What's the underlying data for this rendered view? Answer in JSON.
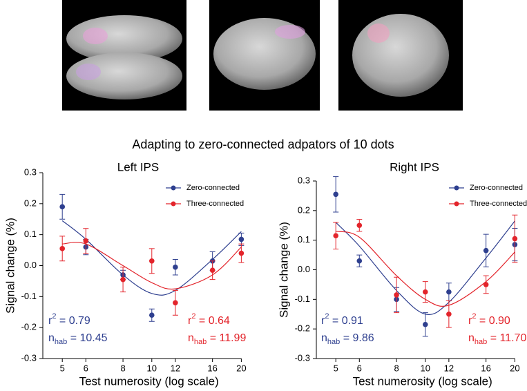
{
  "figure_title": "Adapting to zero-connected adpators of 10 dots",
  "chart_data": [
    {
      "type": "scatter",
      "title": "Left IPS",
      "x_label": "Test numerosity (log scale)",
      "y_label": "Signal change (%)",
      "xscale": "log",
      "xlim": [
        4.3,
        20.5
      ],
      "xticks": [
        5,
        6,
        8,
        10,
        12,
        16,
        20
      ],
      "ylim": [
        -0.3,
        0.3
      ],
      "yticks": [
        -0.3,
        -0.2,
        -0.1,
        {
          "value": 0,
          "label": "0.0"
        },
        0.1,
        0.2,
        0.3
      ],
      "grid": false,
      "legend": "upper right",
      "x": [
        5,
        6,
        8,
        10,
        12,
        16,
        20
      ],
      "series": [
        {
          "name": "Zero-connected",
          "color": "#2e3f8f",
          "values": [
            0.19,
            0.06,
            -0.03,
            -0.16,
            -0.005,
            0.015,
            0.085
          ],
          "errors": [
            0.04,
            0.025,
            0.015,
            0.02,
            0.025,
            0.03,
            0.02
          ],
          "fit": [
            0.145,
            0.085,
            -0.03,
            -0.09,
            -0.08,
            0.02,
            0.11
          ],
          "fit_stats": [
            {
              "base": "r",
              "sup": "2",
              "text": " = 0.79"
            },
            {
              "base": "n",
              "sub": "hab",
              "text": " = 10.45"
            }
          ]
        },
        {
          "name": "Three-connected",
          "color": "#e3242b",
          "values": [
            0.055,
            0.08,
            -0.045,
            0.015,
            -0.12,
            -0.015,
            0.04
          ],
          "errors": [
            0.04,
            0.04,
            0.04,
            0.04,
            0.04,
            0.03,
            0.03
          ],
          "fit": [
            0.07,
            0.07,
            0.0,
            -0.055,
            -0.075,
            -0.03,
            0.06
          ],
          "fit_stats": [
            {
              "base": "r",
              "sup": "2",
              "text": " = 0.64"
            },
            {
              "base": "n",
              "sub": "hab",
              "text": " = 11.99"
            }
          ]
        }
      ]
    },
    {
      "type": "scatter",
      "title": "Right IPS",
      "x_label": "Test numerosity (log scale)",
      "y_label": "Signal change (%)",
      "xscale": "log",
      "xlim": [
        4.3,
        20.5
      ],
      "xticks": [
        5,
        6,
        8,
        10,
        12,
        16,
        20
      ],
      "ylim": [
        -0.3,
        0.3
      ],
      "yticks": [
        -0.3,
        -0.2,
        -0.1,
        {
          "value": 0,
          "label": "0.0"
        },
        0.1,
        0.2,
        0.3
      ],
      "grid": false,
      "legend": "upper right",
      "x": [
        5,
        6,
        8,
        10,
        12,
        16,
        20
      ],
      "series": [
        {
          "name": "Zero-connected",
          "color": "#2e3f8f",
          "values": [
            0.255,
            0.03,
            -0.1,
            -0.185,
            -0.075,
            0.065,
            0.085
          ],
          "errors": [
            0.06,
            0.02,
            0.04,
            0.04,
            0.03,
            0.055,
            0.055
          ],
          "fit": [
            0.16,
            0.08,
            -0.07,
            -0.15,
            -0.11,
            0.04,
            0.165
          ],
          "fit_stats": [
            {
              "base": "r",
              "sup": "2",
              "text": " = 0.91"
            },
            {
              "base": "n",
              "sub": "hab",
              "text": " = 9.86"
            }
          ]
        },
        {
          "name": "Three-connected",
          "color": "#e3242b",
          "values": [
            0.115,
            0.15,
            -0.085,
            -0.075,
            -0.15,
            -0.05,
            0.105
          ],
          "errors": [
            0.045,
            0.02,
            0.06,
            0.035,
            0.045,
            0.03,
            0.08
          ],
          "fit": [
            0.13,
            0.11,
            -0.02,
            -0.1,
            -0.12,
            -0.04,
            0.06
          ],
          "fit_stats": [
            {
              "base": "r",
              "sup": "2",
              "text": " = 0.90"
            },
            {
              "base": "n",
              "sub": "hab",
              "text": " = 11.70"
            }
          ]
        }
      ]
    }
  ]
}
